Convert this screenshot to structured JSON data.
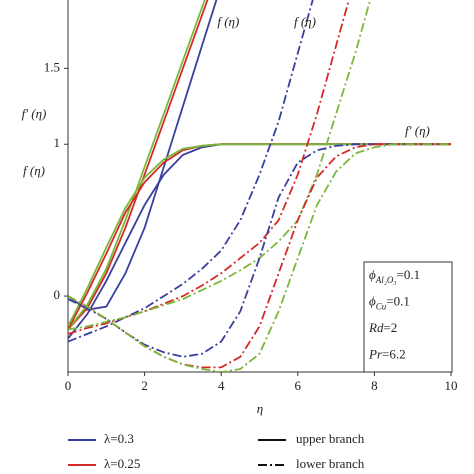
{
  "chart_data": {
    "type": "line",
    "xlabel": "η",
    "ylabels": [
      "f′ (η)",
      "f (η)"
    ],
    "x": [
      0,
      0.5,
      1,
      1.5,
      2,
      2.5,
      3,
      3.5,
      4,
      4.5,
      5,
      5.5,
      6,
      6.5,
      7,
      7.5,
      8,
      8.5,
      9,
      9.5,
      10
    ],
    "xlim": [
      0,
      10
    ],
    "ylim": [
      -0.5,
      1.95
    ],
    "xticks": [
      0,
      2,
      4,
      6,
      8,
      10
    ],
    "yticks": [
      0,
      1,
      1.5
    ],
    "series": [
      {
        "color": "#3a3f9e",
        "style": "solid",
        "values": [
          0,
          -0.09,
          -0.07,
          0.15,
          0.45,
          0.85,
          1.25,
          1.65,
          2.05,
          null,
          null,
          null,
          null,
          null,
          null,
          null,
          null,
          null,
          null,
          null,
          null
        ]
      },
      {
        "color": "#d42a2a",
        "style": "solid",
        "values": [
          -0.22,
          -0.08,
          0.15,
          0.45,
          0.8,
          1.15,
          1.5,
          1.85,
          2.2,
          null,
          null,
          null,
          null,
          null,
          null,
          null,
          null,
          null,
          null,
          null,
          null
        ]
      },
      {
        "color": "#7ab83a",
        "style": "solid",
        "values": [
          -0.22,
          -0.06,
          0.18,
          0.5,
          0.85,
          1.2,
          1.55,
          1.9,
          2.25,
          null,
          null,
          null,
          null,
          null,
          null,
          null,
          null,
          null,
          null,
          null,
          null
        ]
      },
      {
        "color": "#3a3f9e",
        "style": "solid",
        "values": [
          -0.28,
          -0.12,
          0.1,
          0.35,
          0.6,
          0.8,
          0.93,
          0.98,
          1,
          1,
          1,
          1,
          1,
          1,
          1,
          1,
          1,
          1,
          1,
          1,
          1
        ]
      },
      {
        "color": "#d42a2a",
        "style": "solid",
        "values": [
          -0.22,
          0.02,
          0.28,
          0.55,
          0.75,
          0.88,
          0.96,
          0.99,
          1,
          1,
          1,
          1,
          1,
          1,
          1,
          1,
          1,
          1,
          1,
          1,
          1
        ]
      },
      {
        "color": "#7ab83a",
        "style": "solid",
        "values": [
          -0.2,
          0.05,
          0.32,
          0.58,
          0.78,
          0.9,
          0.97,
          0.99,
          1,
          1,
          1,
          1,
          1,
          1,
          1,
          1,
          1,
          1,
          1,
          1,
          1
        ]
      },
      {
        "color": "#3a3f9e",
        "style": "dashdot",
        "values": [
          -0.3,
          -0.25,
          -0.2,
          -0.14,
          -0.08,
          0,
          0.08,
          0.18,
          0.3,
          0.5,
          0.8,
          1.15,
          1.6,
          2.05,
          null,
          null,
          null,
          null,
          null,
          null,
          null
        ]
      },
      {
        "color": "#d42a2a",
        "style": "dashdot",
        "values": [
          -0.25,
          -0.21,
          -0.18,
          -0.14,
          -0.1,
          -0.05,
          0,
          0.07,
          0.15,
          0.25,
          0.35,
          0.5,
          0.8,
          1.2,
          1.65,
          2.1,
          null,
          null,
          null,
          null,
          null
        ]
      },
      {
        "color": "#7ab83a",
        "style": "dashdot",
        "values": [
          -0.22,
          -0.2,
          -0.17,
          -0.14,
          -0.1,
          -0.06,
          -0.02,
          0.04,
          0.1,
          0.17,
          0.25,
          0.36,
          0.5,
          0.8,
          1.2,
          1.6,
          2.05,
          null,
          null,
          null,
          null
        ]
      },
      {
        "color": "#3a3f9e",
        "style": "dashdot",
        "values": [
          -0.02,
          -0.08,
          -0.15,
          -0.24,
          -0.32,
          -0.37,
          -0.4,
          -0.38,
          -0.3,
          -0.1,
          0.25,
          0.65,
          0.88,
          0.96,
          0.99,
          1,
          1,
          1,
          1,
          1,
          1
        ]
      },
      {
        "color": "#d42a2a",
        "style": "dashdot",
        "values": [
          0,
          -0.07,
          -0.15,
          -0.24,
          -0.33,
          -0.4,
          -0.45,
          -0.47,
          -0.47,
          -0.4,
          -0.2,
          0.15,
          0.5,
          0.78,
          0.92,
          0.98,
          1,
          1,
          1,
          1,
          1
        ]
      },
      {
        "color": "#7ab83a",
        "style": "dashdot",
        "values": [
          0,
          -0.07,
          -0.15,
          -0.24,
          -0.33,
          -0.4,
          -0.45,
          -0.48,
          -0.5,
          -0.48,
          -0.38,
          -0.1,
          0.25,
          0.6,
          0.82,
          0.94,
          0.98,
          1,
          1,
          1,
          1
        ]
      }
    ],
    "annotations": [
      {
        "text": "f (η)",
        "x": 3.9,
        "y": 1.8
      },
      {
        "text": "f (η)",
        "x": 5.9,
        "y": 1.8
      },
      {
        "text": "f′ (η)",
        "x": 8.8,
        "y": 1.08
      }
    ],
    "parameters": [
      [
        {
          "text": "ϕ"
        },
        {
          "text": "Al₂O₃",
          "sub": true
        },
        {
          "text": "=0.1"
        }
      ],
      [
        {
          "text": "ϕ"
        },
        {
          "text": "Cu",
          "sub": true
        },
        {
          "text": "=0.1"
        }
      ],
      [
        {
          "text": "Rd"
        },
        {
          "text": "=2"
        }
      ],
      [
        {
          "text": "Pr"
        },
        {
          "text": "=6.2"
        }
      ]
    ],
    "legend": {
      "colors": [
        {
          "label": "λ=0.3",
          "color": "#3a3f9e"
        },
        {
          "label": "λ=0.25",
          "color": "#d42a2a"
        }
      ],
      "styles": [
        {
          "label": "upper branch",
          "style": "solid"
        },
        {
          "label": "lower branch",
          "style": "dashdot"
        }
      ]
    }
  }
}
